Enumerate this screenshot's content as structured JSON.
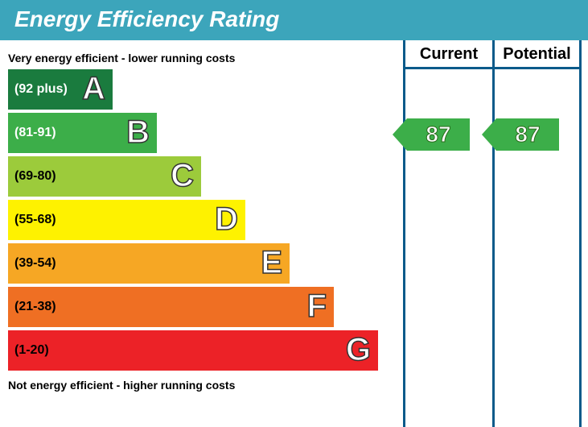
{
  "header": {
    "title": "Energy Efficiency Rating",
    "bg_color": "#3ca5bb",
    "text_color": "#ffffff",
    "fontsize": 28
  },
  "chart": {
    "caption_top": "Very energy efficient - lower running costs",
    "caption_bottom": "Not energy efficient - higher running costs",
    "band_height": 50,
    "band_gap": 4,
    "width_start": 130,
    "width_step": 55,
    "bands": [
      {
        "letter": "A",
        "range": "(92 plus)",
        "bg": "#1a7b3e",
        "text": "#ffffff"
      },
      {
        "letter": "B",
        "range": "(81-91)",
        "bg": "#3cae49",
        "text": "#ffffff"
      },
      {
        "letter": "C",
        "range": "(69-80)",
        "bg": "#9ccb3b",
        "text": "#000000"
      },
      {
        "letter": "D",
        "range": "(55-68)",
        "bg": "#fef200",
        "text": "#000000"
      },
      {
        "letter": "E",
        "range": "(39-54)",
        "bg": "#f6a724",
        "text": "#000000"
      },
      {
        "letter": "F",
        "range": "(21-38)",
        "bg": "#ef6f23",
        "text": "#000000"
      },
      {
        "letter": "G",
        "range": "(1-20)",
        "bg": "#ec2227",
        "text": "#000000"
      }
    ]
  },
  "columns": {
    "border_color": "#0a5a8a",
    "current": {
      "label": "Current",
      "value": "87",
      "band_index": 1,
      "color": "#3cae49"
    },
    "potential": {
      "label": "Potential",
      "value": "87",
      "band_index": 1,
      "color": "#3cae49"
    }
  }
}
